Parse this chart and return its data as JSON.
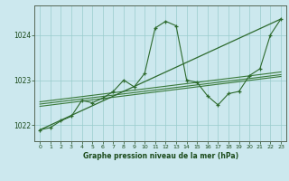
{
  "xlabel": "Graphe pression niveau de la mer (hPa)",
  "xlim": [
    -0.5,
    23.5
  ],
  "ylim": [
    1021.65,
    1024.65
  ],
  "yticks": [
    1022,
    1023,
    1024
  ],
  "xticks": [
    0,
    1,
    2,
    3,
    4,
    5,
    6,
    7,
    8,
    9,
    10,
    11,
    12,
    13,
    14,
    15,
    16,
    17,
    18,
    19,
    20,
    21,
    22,
    23
  ],
  "bg_color": "#cce8ee",
  "grid_color": "#99cccc",
  "line_color_main": "#2d6a2d",
  "line_color_reg": "#3a7a3a",
  "tick_label_color": "#1a4a1a",
  "xlabel_color": "#1a4a1a",
  "series1": [
    1021.9,
    1021.95,
    1022.1,
    1022.2,
    1022.55,
    1022.5,
    1022.6,
    1022.75,
    1023.0,
    1022.85,
    1023.15,
    1024.15,
    1024.3,
    1024.2,
    1023.0,
    1022.95,
    1022.65,
    1022.45,
    1022.7,
    1022.75,
    1023.1,
    1023.25,
    1024.0,
    1024.35
  ],
  "reg_lines": [
    {
      "x0": 0,
      "y0": 1022.42,
      "x1": 23,
      "y1": 1023.08
    },
    {
      "x0": 0,
      "y0": 1022.47,
      "x1": 23,
      "y1": 1023.12
    },
    {
      "x0": 0,
      "y0": 1022.52,
      "x1": 23,
      "y1": 1023.18
    }
  ],
  "diag_line": {
    "x0": 0,
    "y0": 1021.9,
    "x1": 23,
    "y1": 1024.35
  }
}
